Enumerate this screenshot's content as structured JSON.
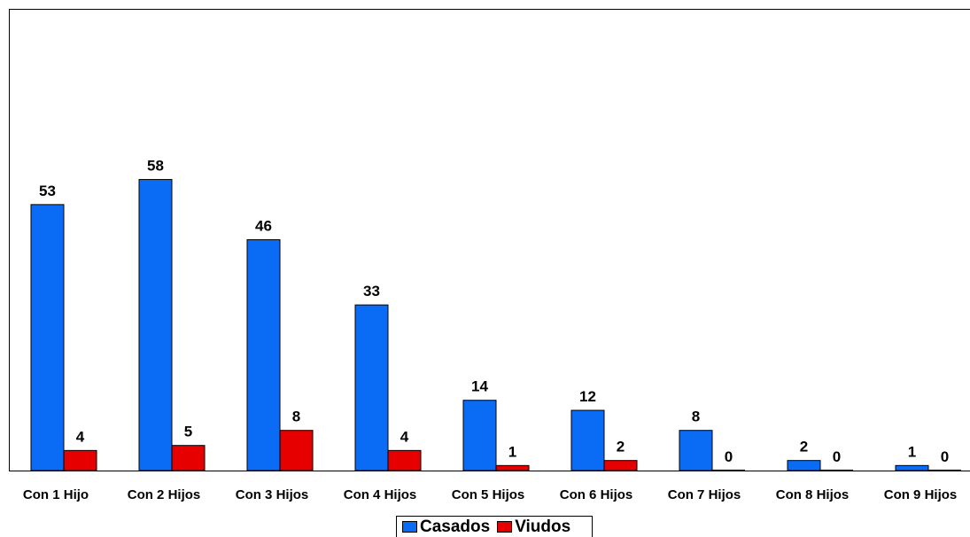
{
  "chart_data": {
    "type": "bar",
    "categories": [
      "Con 1 Hijo",
      "Con 2 Hijos",
      "Con 3 Hijos",
      "Con 4 Hijos",
      "Con 5 Hijos",
      "Con 6 Hijos",
      "Con 7 Hijos",
      "Con 8 Hijos",
      "Con 9 Hijos"
    ],
    "series": [
      {
        "name": "Casados",
        "values": [
          53,
          58,
          46,
          33,
          14,
          12,
          8,
          2,
          1
        ],
        "color": "#0A6CF5"
      },
      {
        "name": "Viudos",
        "values": [
          4,
          5,
          8,
          4,
          1,
          2,
          0,
          0,
          0
        ],
        "color": "#E60000"
      }
    ],
    "ylim": [
      0,
      92
    ],
    "grid": false,
    "legend": "bottom"
  }
}
